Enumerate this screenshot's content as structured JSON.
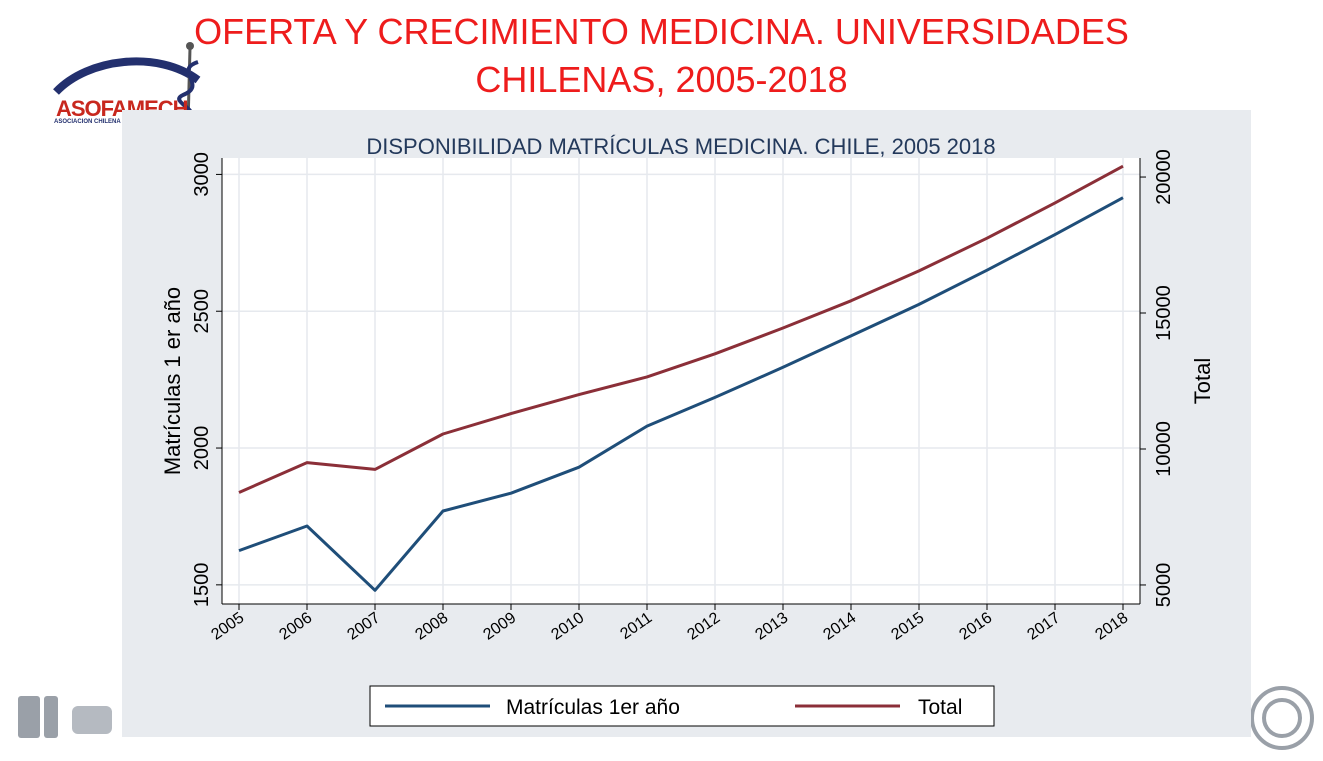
{
  "slide": {
    "title_line1": "OFERTA Y CRECIMIENTO MEDICINA. UNIVERSIDADES",
    "title_line2": "CHILENAS, 2005-2018",
    "logo_text": "ASOFAMECH",
    "logo_subtext": "ASOCIACION CHILENA"
  },
  "colors": {
    "title_red": "#ee1c1c",
    "series_first_year": "#1f4e79",
    "series_total": "#8b2f38",
    "plot_background": "#ffffff",
    "chart_background": "#e8ebef"
  },
  "chart_data": {
    "type": "line",
    "title": "DISPONIBILIDAD MATRÍCULAS MEDICINA. CHILE, 2005 2018",
    "x": [
      2005,
      2006,
      2007,
      2008,
      2009,
      2010,
      2011,
      2012,
      2013,
      2014,
      2015,
      2016,
      2017,
      2018
    ],
    "x_tick_labels": [
      "2005",
      "2006",
      "2007",
      "2008",
      "2009",
      "2010",
      "2011",
      "2012",
      "2013",
      "2014",
      "2015",
      "2016",
      "2017",
      "2018"
    ],
    "ylabel_left": "Matrículas 1 er año",
    "ylabel_right": "Total",
    "ylim_left": [
      1430,
      3060
    ],
    "ylim_right": [
      4300,
      20700
    ],
    "yticks_left": [
      1500,
      2000,
      2500,
      3000
    ],
    "yticks_right": [
      5000,
      10000,
      15000,
      20000
    ],
    "grid": true,
    "legend_position": "bottom",
    "series": [
      {
        "name": "Matrículas 1er año",
        "axis": "left",
        "values": [
          1625,
          1715,
          1480,
          1770,
          1835,
          1930,
          2080,
          2185,
          2295,
          2410,
          2525,
          2650,
          2780,
          2915
        ]
      },
      {
        "name": "Total",
        "axis": "right",
        "values": [
          8400,
          9500,
          9250,
          10550,
          11300,
          12000,
          12650,
          13500,
          14450,
          15450,
          16550,
          17750,
          19050,
          20400
        ]
      }
    ]
  }
}
